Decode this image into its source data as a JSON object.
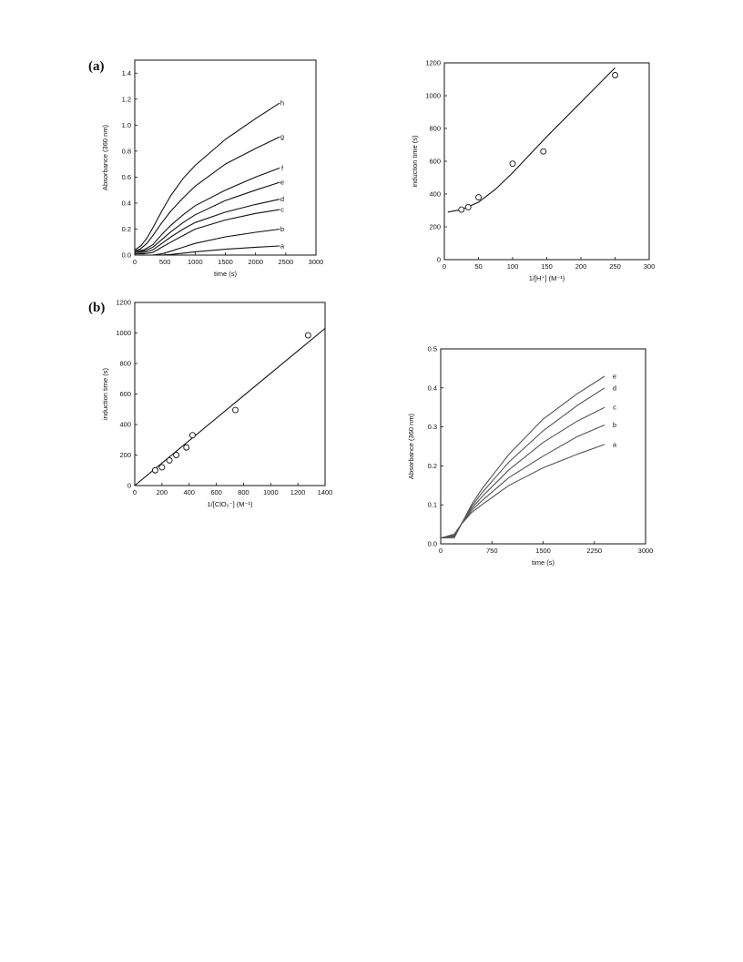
{
  "panel_labels": {
    "a": "(a)",
    "b": "(b)"
  },
  "chart_data": [
    {
      "id": "c1",
      "type": "line",
      "xlabel": "time (s)",
      "ylabel": "Absorbance (360 nm)",
      "xlim": [
        0,
        3000
      ],
      "ylim": [
        0,
        1.5
      ],
      "xticks": [
        0,
        500,
        1000,
        1500,
        2000,
        2500,
        3000
      ],
      "yticks": [
        0.0,
        0.2,
        0.4,
        0.6,
        0.8,
        1.0,
        1.2,
        1.4
      ],
      "ytick_labels": [
        "0.0",
        "0.2",
        "0.4",
        "0.6",
        "0.8",
        "1.0",
        "1.2",
        "1.4"
      ],
      "series": [
        {
          "name": "a",
          "x": [
            0,
            300,
            450,
            600,
            800,
            1000,
            1500,
            2000,
            2400
          ],
          "y": [
            0.0,
            0.0,
            0.0,
            0.005,
            0.015,
            0.025,
            0.045,
            0.06,
            0.07
          ]
        },
        {
          "name": "b",
          "x": [
            0,
            300,
            450,
            600,
            800,
            1000,
            1500,
            2000,
            2400
          ],
          "y": [
            0.0,
            0.0,
            0.01,
            0.03,
            0.06,
            0.09,
            0.14,
            0.175,
            0.2
          ]
        },
        {
          "name": "c",
          "x": [
            0,
            150,
            300,
            450,
            600,
            800,
            1000,
            1500,
            2000,
            2400
          ],
          "y": [
            0.01,
            0.01,
            0.02,
            0.06,
            0.1,
            0.15,
            0.2,
            0.27,
            0.32,
            0.35
          ]
        },
        {
          "name": "d",
          "x": [
            0,
            150,
            300,
            450,
            600,
            800,
            1000,
            1500,
            2000,
            2400
          ],
          "y": [
            0.02,
            0.02,
            0.04,
            0.09,
            0.14,
            0.2,
            0.25,
            0.33,
            0.39,
            0.43
          ]
        },
        {
          "name": "e",
          "x": [
            0,
            150,
            300,
            450,
            600,
            800,
            1000,
            1500,
            2000,
            2400
          ],
          "y": [
            0.02,
            0.03,
            0.06,
            0.12,
            0.18,
            0.25,
            0.31,
            0.42,
            0.5,
            0.56
          ]
        },
        {
          "name": "f",
          "x": [
            0,
            150,
            300,
            450,
            600,
            800,
            1000,
            1500,
            2000,
            2400
          ],
          "y": [
            0.03,
            0.04,
            0.08,
            0.16,
            0.23,
            0.31,
            0.38,
            0.5,
            0.6,
            0.67
          ]
        },
        {
          "name": "g",
          "x": [
            0,
            100,
            200,
            300,
            450,
            600,
            800,
            1000,
            1500,
            2000,
            2400
          ],
          "y": [
            0.03,
            0.05,
            0.09,
            0.15,
            0.25,
            0.34,
            0.44,
            0.53,
            0.7,
            0.82,
            0.91
          ]
        },
        {
          "name": "h",
          "x": [
            0,
            100,
            200,
            300,
            450,
            600,
            800,
            1000,
            1500,
            2000,
            2400
          ],
          "y": [
            0.04,
            0.07,
            0.13,
            0.21,
            0.34,
            0.46,
            0.59,
            0.69,
            0.89,
            1.05,
            1.17
          ]
        }
      ]
    },
    {
      "id": "c2",
      "type": "scatter",
      "xlabel": "1/[H⁺] (M⁻¹)",
      "ylabel": "induction time (s)",
      "xlim": [
        0,
        300
      ],
      "ylim": [
        0,
        1200
      ],
      "xticks": [
        0,
        50,
        100,
        150,
        200,
        250,
        300
      ],
      "yticks": [
        0,
        200,
        400,
        600,
        800,
        1000,
        1200
      ],
      "points": {
        "x": [
          25,
          35,
          50,
          100,
          145,
          250
        ],
        "y": [
          305,
          320,
          380,
          585,
          660,
          1125
        ]
      },
      "fit": {
        "x": [
          5,
          25,
          50,
          75,
          100,
          150,
          200,
          250
        ],
        "y": [
          290,
          305,
          350,
          430,
          530,
          750,
          960,
          1170
        ]
      }
    },
    {
      "id": "c3",
      "type": "scatter",
      "xlabel": "1/[ClO₂⁻] (M⁻¹)",
      "ylabel": "induction time (s)",
      "xlim": [
        0,
        1400
      ],
      "ylim": [
        0,
        1200
      ],
      "xticks": [
        0,
        200,
        400,
        600,
        800,
        1000,
        1200,
        1400
      ],
      "yticks": [
        0,
        200,
        400,
        600,
        800,
        1000,
        1200
      ],
      "points": {
        "x": [
          150,
          200,
          255,
          305,
          380,
          425,
          740,
          1275
        ],
        "y": [
          100,
          120,
          165,
          200,
          250,
          330,
          495,
          985
        ]
      },
      "fit": {
        "x": [
          0,
          1400
        ],
        "y": [
          0,
          1030
        ]
      }
    },
    {
      "id": "c4",
      "type": "line",
      "xlabel": "time (s)",
      "ylabel": "Absorbance (360 nm)",
      "xlim": [
        0,
        3000
      ],
      "ylim": [
        0,
        0.5
      ],
      "xticks": [
        0,
        750,
        1500,
        2250,
        3000
      ],
      "yticks": [
        0.0,
        0.1,
        0.2,
        0.3,
        0.4,
        0.5
      ],
      "ytick_labels": [
        "0.0",
        "0.1",
        "0.2",
        "0.3",
        "0.4",
        "0.5"
      ],
      "series": [
        {
          "name": "a",
          "x": [
            0,
            200,
            300,
            450,
            600,
            800,
            1000,
            1500,
            2000,
            2400
          ],
          "y": [
            0.015,
            0.025,
            0.05,
            0.08,
            0.1,
            0.125,
            0.15,
            0.195,
            0.23,
            0.255
          ]
        },
        {
          "name": "b",
          "x": [
            0,
            200,
            300,
            450,
            600,
            800,
            1000,
            1500,
            2000,
            2400
          ],
          "y": [
            0.015,
            0.022,
            0.05,
            0.085,
            0.11,
            0.14,
            0.17,
            0.225,
            0.275,
            0.305
          ]
        },
        {
          "name": "c",
          "x": [
            0,
            200,
            300,
            450,
            600,
            800,
            1000,
            1500,
            2000,
            2400
          ],
          "y": [
            0.015,
            0.02,
            0.05,
            0.09,
            0.12,
            0.155,
            0.19,
            0.26,
            0.315,
            0.35
          ]
        },
        {
          "name": "d",
          "x": [
            0,
            200,
            300,
            450,
            600,
            800,
            1000,
            1500,
            2000,
            2400
          ],
          "y": [
            0.015,
            0.018,
            0.05,
            0.095,
            0.13,
            0.17,
            0.21,
            0.29,
            0.355,
            0.4
          ]
        },
        {
          "name": "e",
          "x": [
            0,
            200,
            300,
            450,
            600,
            800,
            1000,
            1500,
            2000,
            2400
          ],
          "y": [
            0.015,
            0.016,
            0.05,
            0.1,
            0.14,
            0.185,
            0.23,
            0.32,
            0.385,
            0.43
          ]
        }
      ]
    }
  ]
}
